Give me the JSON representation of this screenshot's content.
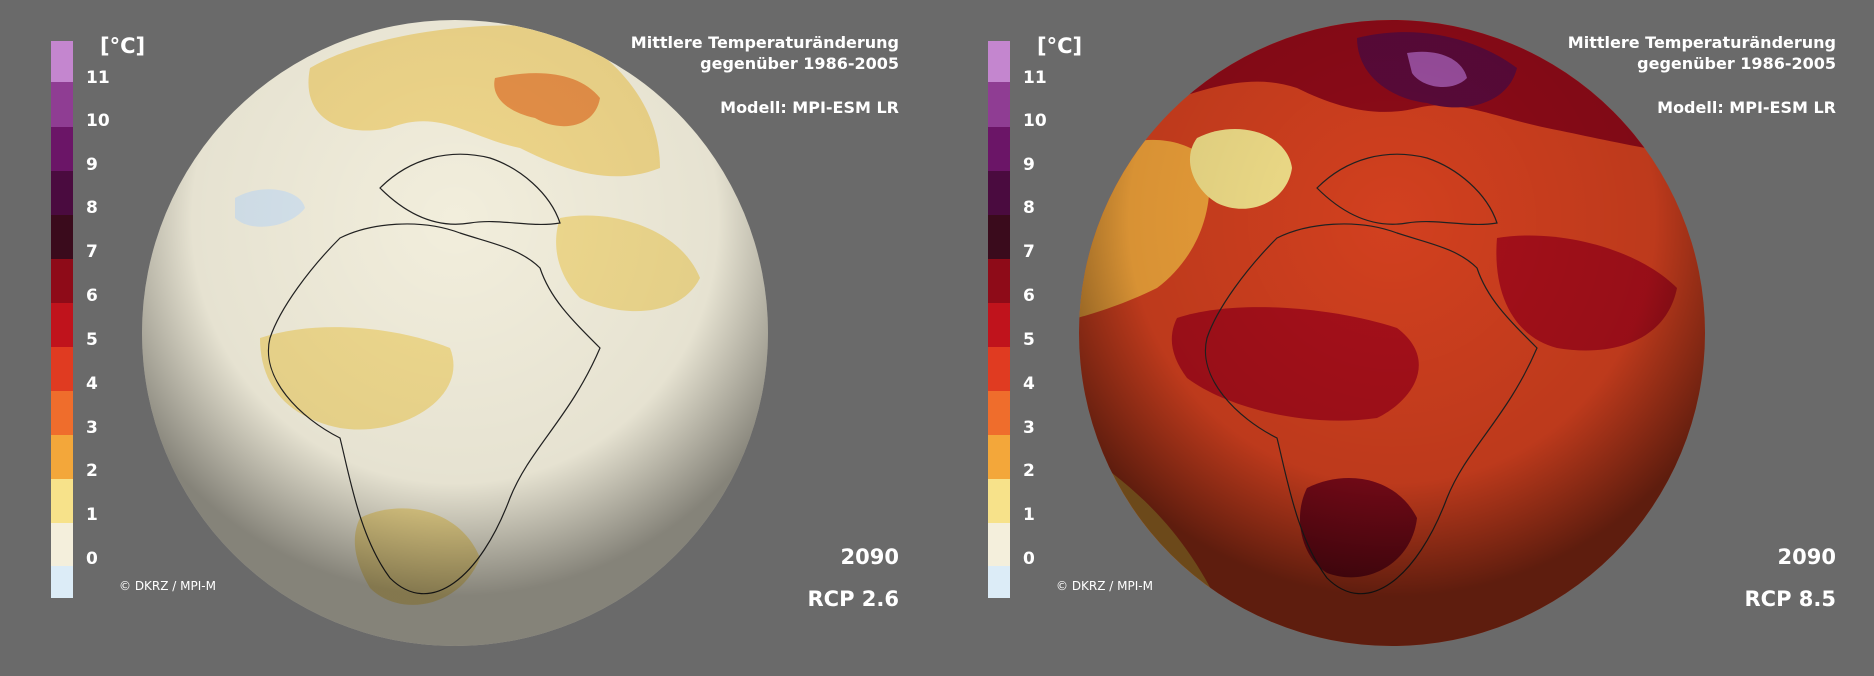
{
  "colorbar": {
    "unit": "[°C]",
    "ticks": [
      "11",
      "10",
      "9",
      "8",
      "7",
      "6",
      "5",
      "4",
      "3",
      "2",
      "1",
      "0"
    ],
    "colors": [
      "#dcecf7",
      "#f4efdc",
      "#f7e28a",
      "#f3a73a",
      "#ef6d2c",
      "#e03b21",
      "#c0131c",
      "#8e0b18",
      "#5b0a20",
      "#4a0b3f",
      "#6b1567",
      "#8f3d93",
      "#c486cf"
    ]
  },
  "left": {
    "title_line1": "Mittlere Temperaturänderung",
    "title_line2": "gegenüber 1986-2005",
    "model": "Modell: MPI-ESM LR",
    "year": "2090",
    "scenario": "RCP 2.6",
    "credit": "© DKRZ / MPI-M"
  },
  "right": {
    "title_line1": "Mittlere Temperaturänderung",
    "title_line2": "gegenüber 1986-2005",
    "model": "Modell: MPI-ESM LR",
    "year": "2090",
    "scenario": "RCP 8.5",
    "credit": "© DKRZ / MPI-M"
  }
}
